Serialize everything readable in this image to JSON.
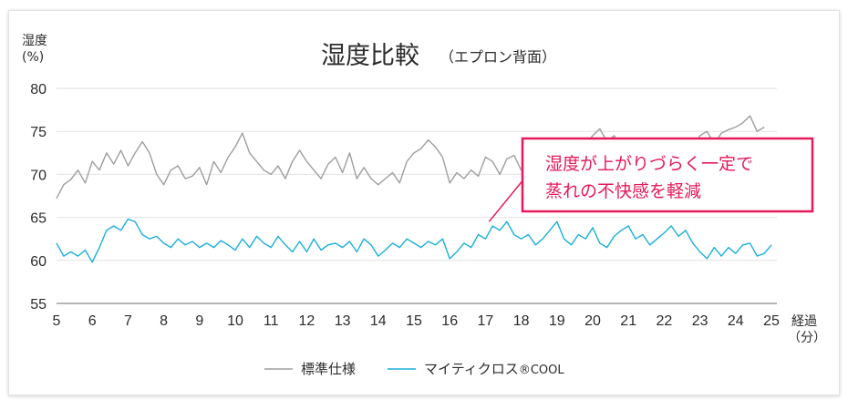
{
  "chart_data": {
    "type": "line",
    "title": "湿度比較",
    "subtitle": "（エプロン背面）",
    "ylabel_line1": "湿度",
    "ylabel_line2": "(%)",
    "xlabel_line1": "経過",
    "xlabel_line2": "（分）",
    "xlim": [
      5,
      25
    ],
    "ylim": [
      55,
      80
    ],
    "x_ticks": [
      5,
      6,
      7,
      8,
      9,
      10,
      11,
      12,
      13,
      14,
      15,
      16,
      17,
      18,
      19,
      20,
      21,
      22,
      23,
      24,
      25
    ],
    "y_ticks": [
      55,
      60,
      65,
      70,
      75,
      80
    ],
    "grid": "horizontal",
    "legend_position": "bottom",
    "annotation": {
      "line1": "湿度が上がりづらく一定で",
      "line2": "蒸れの不快感を軽減",
      "points_to": [
        17.1,
        64.5
      ]
    },
    "series": [
      {
        "name": "標準仕様",
        "color": "#9e9e9e",
        "x": [
          5.0,
          5.2,
          5.4,
          5.6,
          5.8,
          6.0,
          6.2,
          6.4,
          6.6,
          6.8,
          7.0,
          7.2,
          7.4,
          7.6,
          7.8,
          8.0,
          8.2,
          8.4,
          8.6,
          8.8,
          9.0,
          9.2,
          9.4,
          9.6,
          9.8,
          10.0,
          10.2,
          10.4,
          10.6,
          10.8,
          11.0,
          11.2,
          11.4,
          11.6,
          11.8,
          12.0,
          12.2,
          12.4,
          12.6,
          12.8,
          13.0,
          13.2,
          13.4,
          13.6,
          13.8,
          14.0,
          14.2,
          14.4,
          14.6,
          14.8,
          15.0,
          15.2,
          15.4,
          15.6,
          15.8,
          16.0,
          16.2,
          16.4,
          16.6,
          16.8,
          17.0,
          17.2,
          17.4,
          17.6,
          17.8,
          18.0,
          18.2,
          18.4,
          18.6,
          18.8,
          19.0,
          19.2,
          19.4,
          19.6,
          19.8,
          20.0,
          20.2,
          20.4,
          20.6,
          20.8,
          21.0,
          21.2,
          21.4,
          21.6,
          21.8,
          22.0,
          22.2,
          22.4,
          22.6,
          22.8,
          23.0,
          23.2,
          23.4,
          23.6,
          23.8,
          24.0,
          24.2,
          24.4,
          24.6,
          24.8
        ],
        "values": [
          67.2,
          68.8,
          69.4,
          70.5,
          69.0,
          71.5,
          70.5,
          72.5,
          71.2,
          72.8,
          71.0,
          72.5,
          73.8,
          72.5,
          70.0,
          68.8,
          70.5,
          71.0,
          69.5,
          69.8,
          70.8,
          68.8,
          71.5,
          70.2,
          72.0,
          73.2,
          74.8,
          72.5,
          71.5,
          70.5,
          70.0,
          71.0,
          69.5,
          71.5,
          72.8,
          71.5,
          70.5,
          69.5,
          71.2,
          72.0,
          70.2,
          72.5,
          69.5,
          70.8,
          69.5,
          68.8,
          69.5,
          70.2,
          69.0,
          71.5,
          72.5,
          73.0,
          74.0,
          73.2,
          72.0,
          69.0,
          70.2,
          69.5,
          70.5,
          69.8,
          72.0,
          71.5,
          70.0,
          71.8,
          72.2,
          70.5,
          69.5,
          71.2,
          72.0,
          70.0,
          72.5,
          70.8,
          71.5,
          72.8,
          73.5,
          74.5,
          75.3,
          73.8,
          74.5,
          73.0,
          71.5,
          72.8,
          74.0,
          72.5,
          71.0,
          73.5,
          74.2,
          72.8,
          73.0,
          72.5,
          74.5,
          75.0,
          73.5,
          74.8,
          75.2,
          75.5,
          76.0,
          76.8,
          75.0,
          75.5
        ]
      },
      {
        "name": "マイティクロス",
        "name_suffix": "®COOL",
        "color": "#1aafd8",
        "x": [
          5.0,
          5.2,
          5.4,
          5.6,
          5.8,
          6.0,
          6.2,
          6.4,
          6.6,
          6.8,
          7.0,
          7.2,
          7.4,
          7.6,
          7.8,
          8.0,
          8.2,
          8.4,
          8.6,
          8.8,
          9.0,
          9.2,
          9.4,
          9.6,
          9.8,
          10.0,
          10.2,
          10.4,
          10.6,
          10.8,
          11.0,
          11.2,
          11.4,
          11.6,
          11.8,
          12.0,
          12.2,
          12.4,
          12.6,
          12.8,
          13.0,
          13.2,
          13.4,
          13.6,
          13.8,
          14.0,
          14.2,
          14.4,
          14.6,
          14.8,
          15.0,
          15.2,
          15.4,
          15.6,
          15.8,
          16.0,
          16.2,
          16.4,
          16.6,
          16.8,
          17.0,
          17.2,
          17.4,
          17.6,
          17.8,
          18.0,
          18.2,
          18.4,
          18.6,
          18.8,
          19.0,
          19.2,
          19.4,
          19.6,
          19.8,
          20.0,
          20.2,
          20.4,
          20.6,
          20.8,
          21.0,
          21.2,
          21.4,
          21.6,
          21.8,
          22.0,
          22.2,
          22.4,
          22.6,
          22.8,
          23.0,
          23.2,
          23.4,
          23.6,
          23.8,
          24.0,
          24.2,
          24.4,
          24.6,
          24.8,
          25.0
        ],
        "values": [
          62.0,
          60.5,
          61.0,
          60.5,
          61.2,
          59.8,
          61.5,
          63.5,
          64.0,
          63.5,
          64.8,
          64.5,
          63.0,
          62.5,
          62.8,
          62.0,
          61.5,
          62.5,
          61.8,
          62.2,
          61.5,
          62.0,
          61.5,
          62.3,
          61.8,
          61.2,
          62.5,
          61.5,
          62.8,
          62.0,
          61.5,
          62.8,
          61.8,
          61.0,
          62.2,
          61.0,
          62.5,
          61.2,
          61.8,
          62.0,
          61.5,
          62.2,
          61.0,
          62.5,
          61.8,
          60.5,
          61.2,
          62.0,
          61.5,
          62.5,
          62.0,
          61.5,
          62.2,
          61.8,
          62.5,
          60.2,
          61.0,
          62.0,
          61.5,
          63.0,
          62.5,
          64.0,
          63.5,
          64.5,
          63.0,
          62.5,
          63.0,
          61.8,
          62.5,
          63.5,
          64.5,
          62.5,
          61.8,
          63.0,
          62.5,
          63.8,
          62.0,
          61.5,
          62.8,
          63.5,
          64.0,
          62.5,
          63.0,
          61.8,
          62.5,
          63.2,
          64.0,
          62.8,
          63.5,
          62.0,
          61.0,
          60.2,
          61.5,
          60.5,
          61.5,
          60.8,
          61.8,
          62.0,
          60.5,
          60.8,
          61.8
        ]
      }
    ]
  }
}
